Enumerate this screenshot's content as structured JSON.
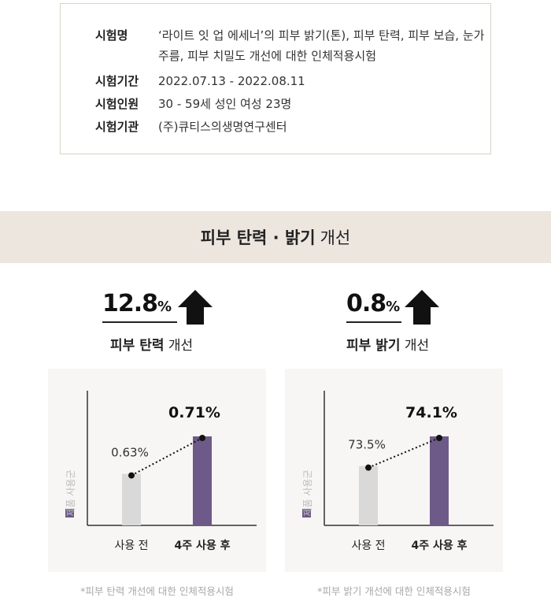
{
  "info": {
    "rows": [
      {
        "label": "시험명",
        "value": "‘라이트 잇 업 에세너’의 피부 밝기(톤), 피부 탄력, 피부 보습, 눈가 주름, 피부 치밀도 개선에 대한 인체적용시험"
      },
      {
        "label": "시험기간",
        "value": "2022.07.13 - 2022.08.11"
      },
      {
        "label": "시험인원",
        "value": "30 - 59세 성인 여성 23명"
      },
      {
        "label": "시험기관",
        "value": "(주)큐티스의생명연구센터"
      }
    ]
  },
  "banner": {
    "bold": "피부 탄력 · 밝기",
    "normal": "개선"
  },
  "stats": [
    {
      "value": "12.8",
      "unit": "%",
      "label_bold": "피부 탄력",
      "label_normal": "개선"
    },
    {
      "value": "0.8",
      "unit": "%",
      "label_bold": "피부 밝기",
      "label_normal": "개선"
    }
  ],
  "legend_label": "제품 사용군",
  "footnotes": [
    "*피부 탄력 개선에 대한 인체적용시험",
    "*피부 밝기 개선에 대한 인체적용시험"
  ],
  "colors": {
    "before": "#d9d9d9",
    "after": "#6e5a88",
    "banner": "#ece6df",
    "panel": "#f7f6f5"
  },
  "chart_data": [
    {
      "type": "bar",
      "categories": [
        "사용 전",
        "4주 사용 후"
      ],
      "values": [
        0.63,
        0.71
      ],
      "value_labels": [
        "0.63%",
        "0.71%"
      ],
      "series": [
        {
          "name": "제품 사용군",
          "values": [
            0.63,
            0.71
          ]
        }
      ]
    },
    {
      "type": "bar",
      "categories": [
        "사용 전",
        "4주 사용 후"
      ],
      "values": [
        73.5,
        74.1
      ],
      "value_labels": [
        "73.5%",
        "74.1%"
      ],
      "series": [
        {
          "name": "제품 사용군",
          "values": [
            73.5,
            74.1
          ]
        }
      ]
    }
  ]
}
